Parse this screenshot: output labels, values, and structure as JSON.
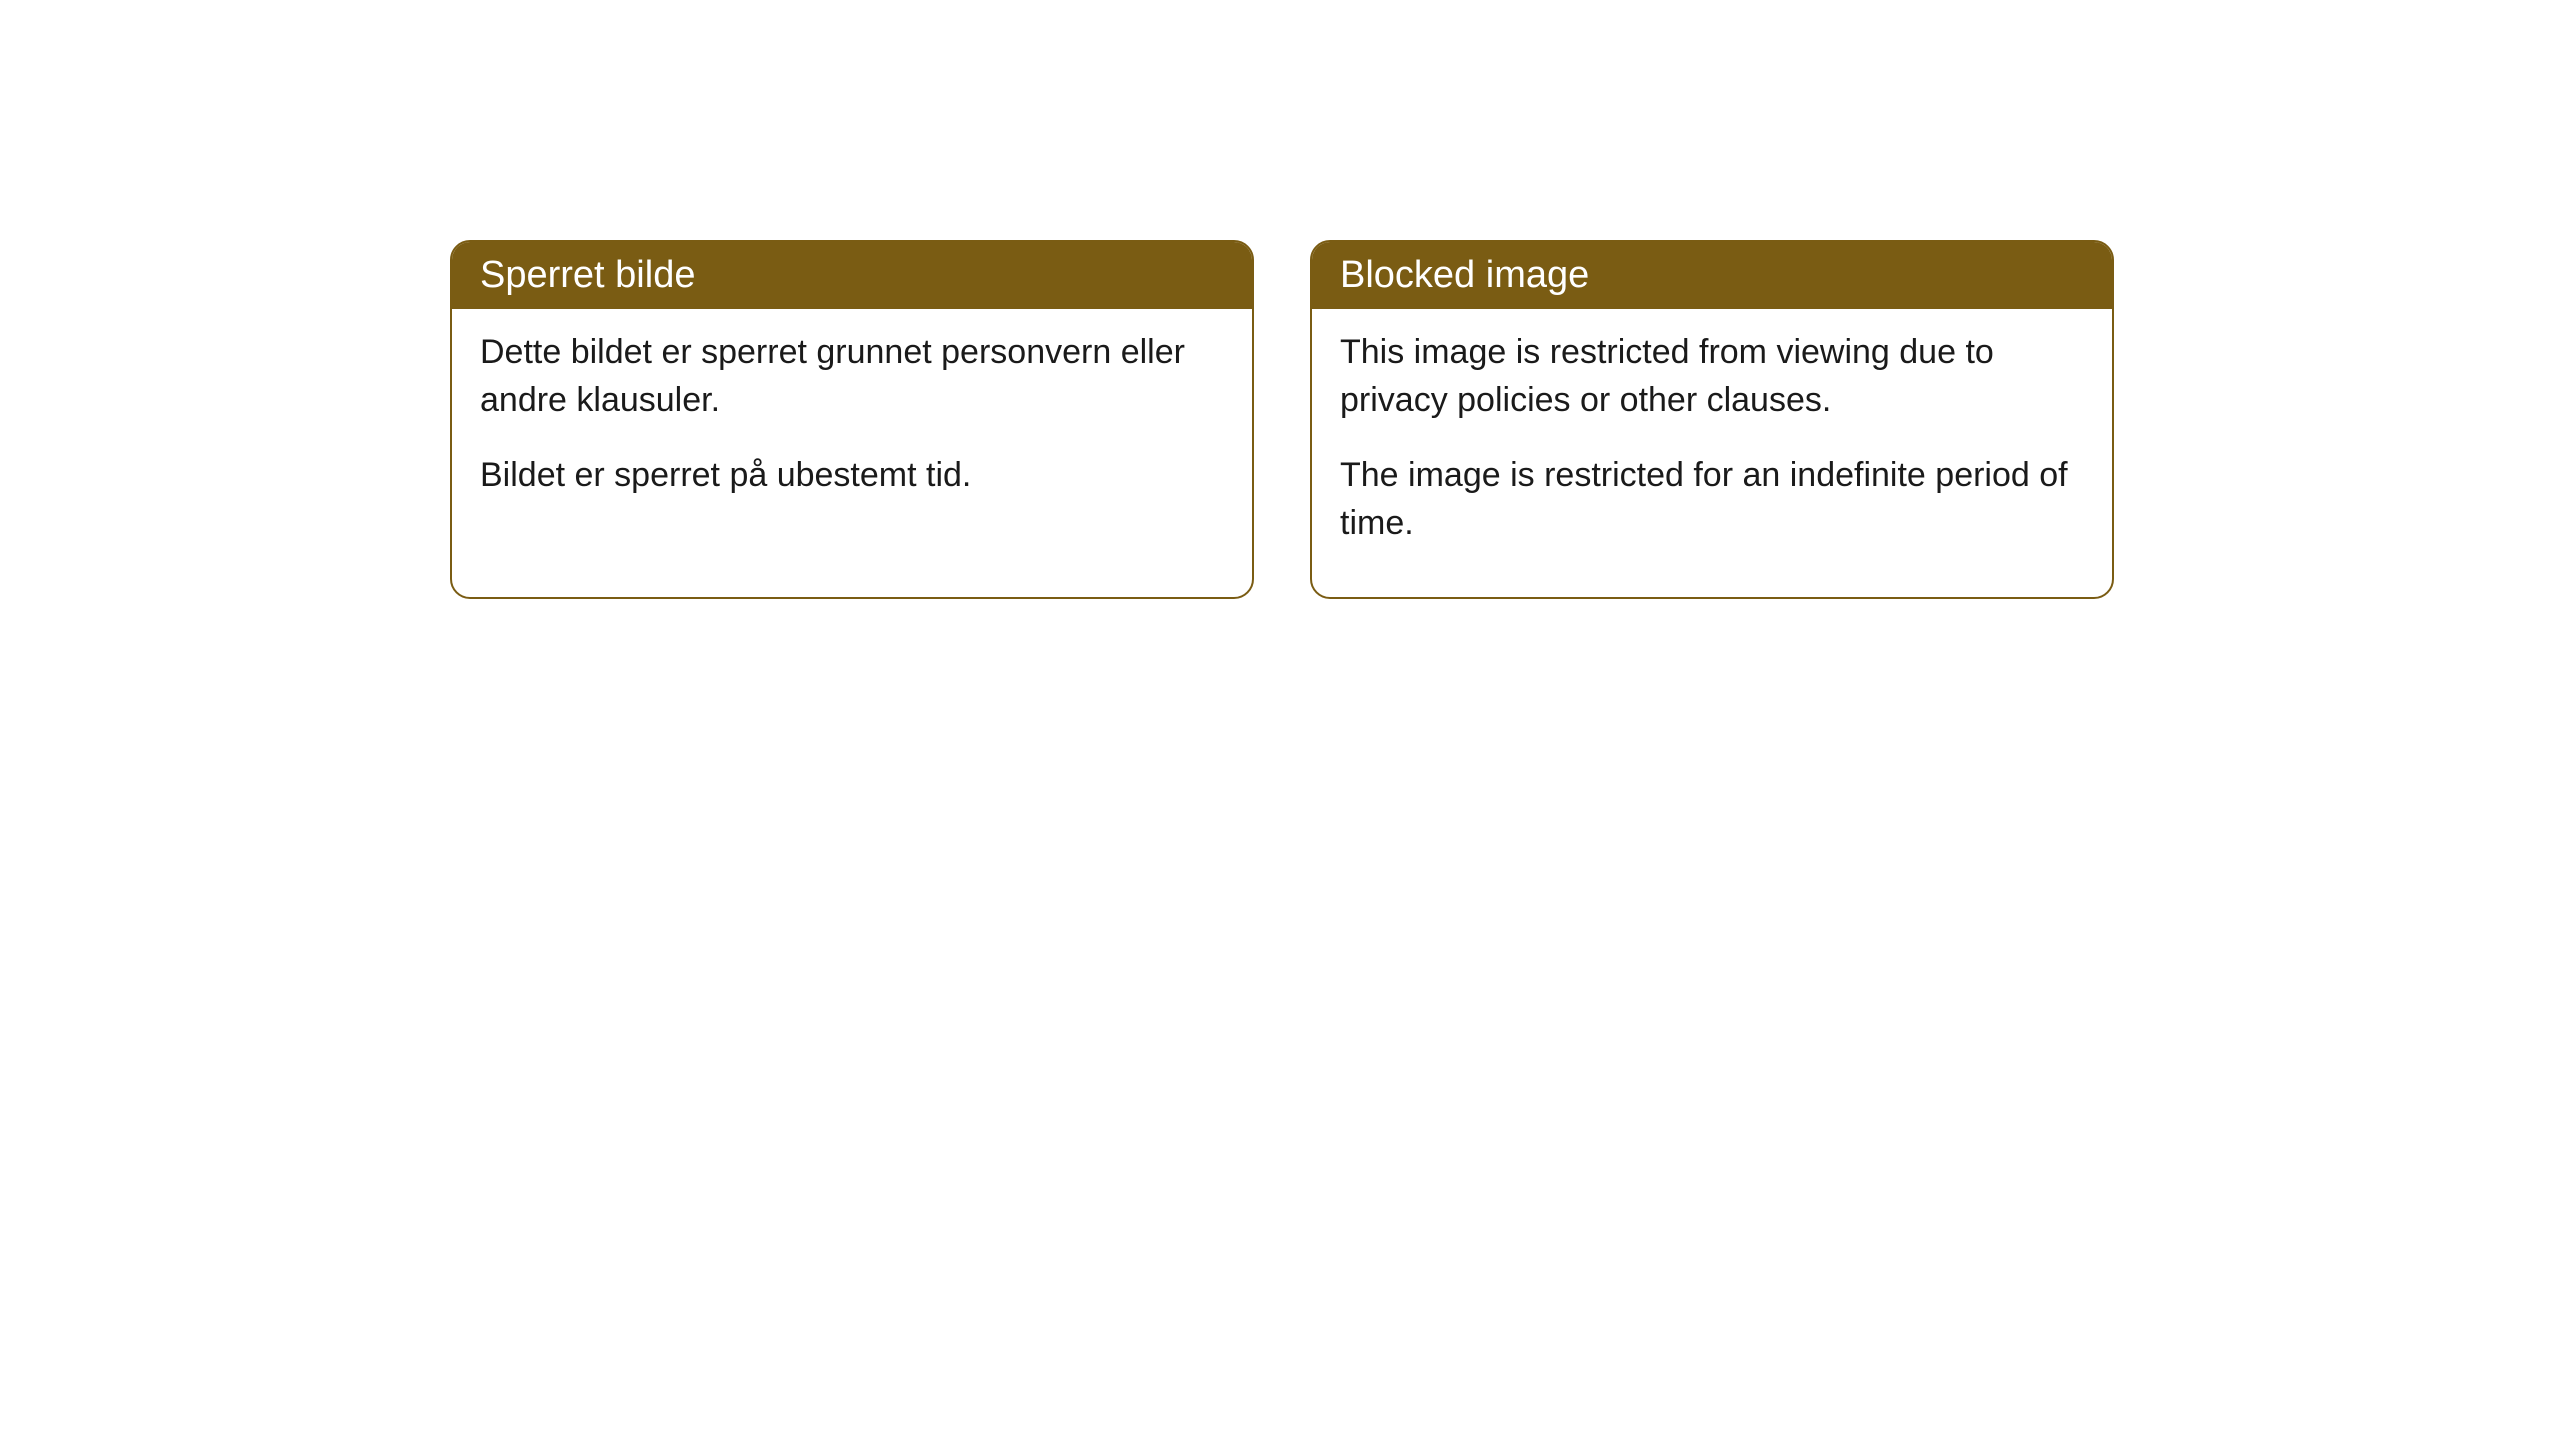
{
  "cards": [
    {
      "title": "Sperret bilde",
      "para1": "Dette bildet er sperret grunnet personvern eller andre klausuler.",
      "para2": "Bildet er sperret på ubestemt tid."
    },
    {
      "title": "Blocked image",
      "para1": "This image is restricted from viewing due to privacy policies or other clauses.",
      "para2": "The image is restricted for an indefinite period of time."
    }
  ],
  "style": {
    "header_bg": "#7a5c13",
    "header_text_color": "#ffffff",
    "border_color": "#7a5c13",
    "card_bg": "#ffffff",
    "body_text_color": "#1a1a1a",
    "border_radius": 20,
    "title_fontsize": 38,
    "body_fontsize": 34
  }
}
